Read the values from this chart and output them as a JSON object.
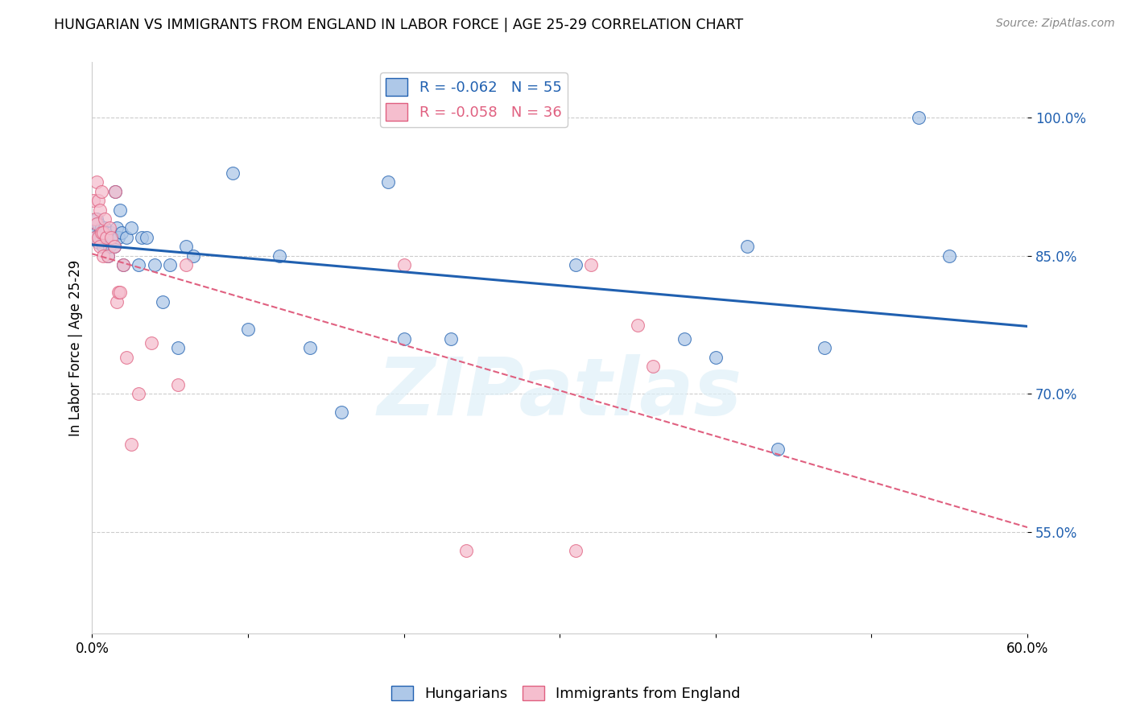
{
  "title": "HUNGARIAN VS IMMIGRANTS FROM ENGLAND IN LABOR FORCE | AGE 25-29 CORRELATION CHART",
  "source": "Source: ZipAtlas.com",
  "ylabel": "In Labor Force | Age 25-29",
  "xlim": [
    0.0,
    0.6
  ],
  "ylim": [
    0.44,
    1.06
  ],
  "yticks": [
    0.55,
    0.7,
    0.85,
    1.0
  ],
  "ytick_labels": [
    "55.0%",
    "70.0%",
    "85.0%",
    "100.0%"
  ],
  "xticks": [
    0.0,
    0.1,
    0.2,
    0.3,
    0.4,
    0.5,
    0.6
  ],
  "xtick_labels": [
    "0.0%",
    "",
    "",
    "",
    "",
    "",
    "60.0%"
  ],
  "blue_R": "-0.062",
  "blue_N": "55",
  "pink_R": "-0.058",
  "pink_N": "36",
  "blue_color": "#aec8e8",
  "pink_color": "#f5bece",
  "blue_line_color": "#2060b0",
  "pink_line_color": "#e06080",
  "watermark": "ZIPatlas",
  "blue_x": [
    0.001,
    0.002,
    0.002,
    0.003,
    0.003,
    0.004,
    0.004,
    0.005,
    0.005,
    0.006,
    0.006,
    0.007,
    0.007,
    0.008,
    0.008,
    0.009,
    0.01,
    0.01,
    0.011,
    0.012,
    0.013,
    0.014,
    0.015,
    0.016,
    0.017,
    0.018,
    0.019,
    0.02,
    0.022,
    0.025,
    0.03,
    0.032,
    0.035,
    0.04,
    0.045,
    0.05,
    0.055,
    0.06,
    0.065,
    0.09,
    0.1,
    0.12,
    0.14,
    0.16,
    0.19,
    0.2,
    0.23,
    0.31,
    0.38,
    0.4,
    0.42,
    0.44,
    0.47,
    0.53,
    0.55
  ],
  "blue_y": [
    0.875,
    0.88,
    0.87,
    0.89,
    0.875,
    0.885,
    0.865,
    0.875,
    0.87,
    0.88,
    0.87,
    0.865,
    0.86,
    0.87,
    0.88,
    0.875,
    0.87,
    0.85,
    0.86,
    0.875,
    0.87,
    0.86,
    0.92,
    0.88,
    0.87,
    0.9,
    0.875,
    0.84,
    0.87,
    0.88,
    0.84,
    0.87,
    0.87,
    0.84,
    0.8,
    0.84,
    0.75,
    0.86,
    0.85,
    0.94,
    0.77,
    0.85,
    0.75,
    0.68,
    0.93,
    0.76,
    0.76,
    0.84,
    0.76,
    0.74,
    0.86,
    0.64,
    0.75,
    1.0,
    0.85
  ],
  "pink_x": [
    0.001,
    0.002,
    0.002,
    0.003,
    0.003,
    0.004,
    0.004,
    0.005,
    0.005,
    0.006,
    0.006,
    0.007,
    0.007,
    0.008,
    0.009,
    0.01,
    0.011,
    0.012,
    0.014,
    0.015,
    0.016,
    0.017,
    0.018,
    0.02,
    0.022,
    0.025,
    0.03,
    0.038,
    0.055,
    0.06,
    0.2,
    0.24,
    0.31,
    0.32,
    0.35,
    0.36
  ],
  "pink_y": [
    0.91,
    0.89,
    0.87,
    0.93,
    0.885,
    0.91,
    0.87,
    0.9,
    0.86,
    0.92,
    0.875,
    0.875,
    0.85,
    0.89,
    0.87,
    0.85,
    0.88,
    0.87,
    0.86,
    0.92,
    0.8,
    0.81,
    0.81,
    0.84,
    0.74,
    0.645,
    0.7,
    0.755,
    0.71,
    0.84,
    0.84,
    0.53,
    0.53,
    0.84,
    0.775,
    0.73
  ]
}
